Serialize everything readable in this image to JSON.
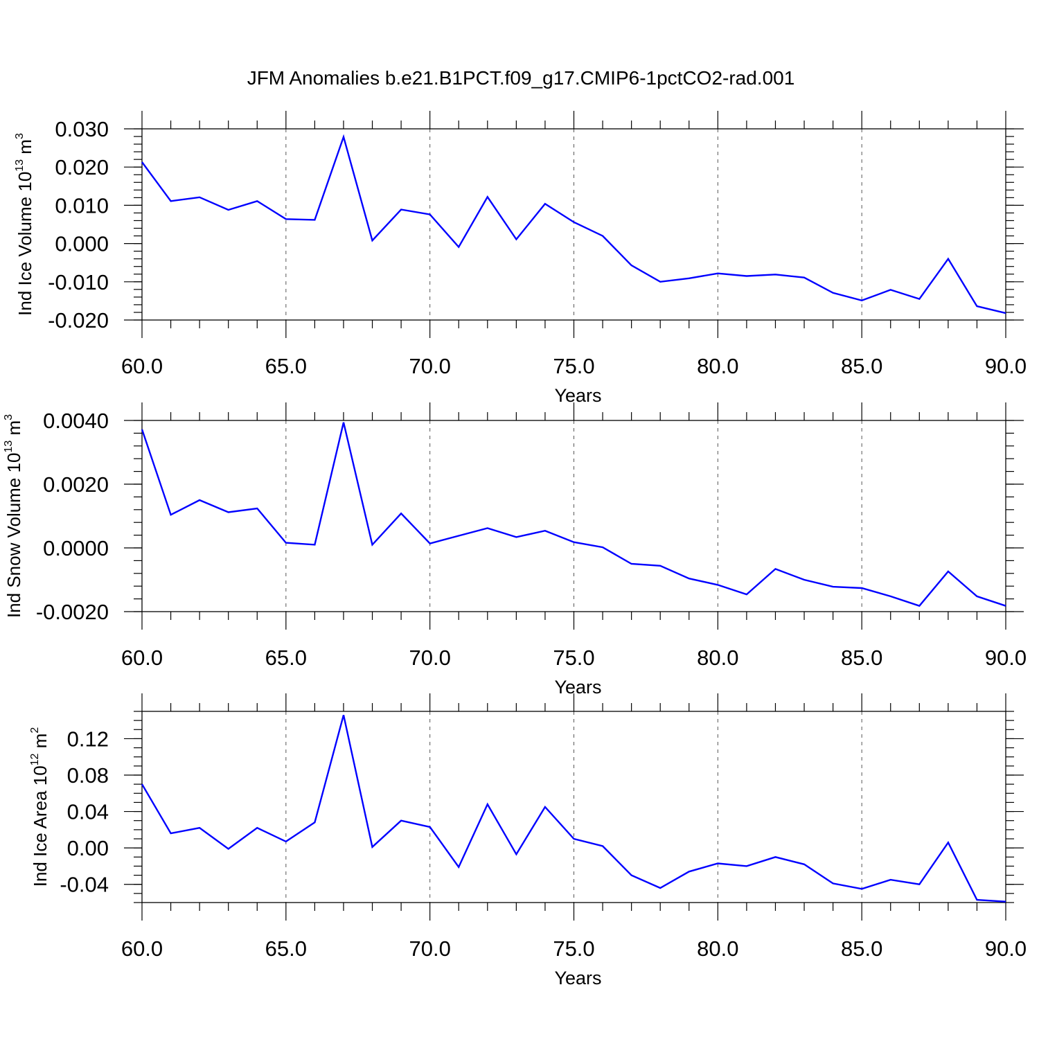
{
  "title": "JFM Anomalies b.e21.B1PCT.f09_g17.CMIP6-1pctCO2-rad.001",
  "colors": {
    "line": "#0000ff",
    "axis": "#000000",
    "grid": "#555555"
  },
  "chart_data": [
    {
      "type": "line",
      "id": "ice-volume",
      "xlabel": "Years",
      "ylabel": {
        "prefix": "Ind Ice Volume 10",
        "exp": "13",
        "unit": " m",
        "unit_exp": "3"
      },
      "xlim": [
        60,
        90
      ],
      "ylim": [
        -0.02,
        0.03
      ],
      "xticks": [
        60,
        65,
        70,
        75,
        80,
        85,
        90
      ],
      "xtick_labels": [
        "60.0",
        "65.0",
        "70.0",
        "75.0",
        "80.0",
        "85.0",
        "90.0"
      ],
      "yticks": [
        -0.02,
        -0.01,
        0.0,
        0.01,
        0.02,
        0.03
      ],
      "ytick_labels": [
        "-0.020",
        "-0.010",
        "0.000",
        "0.010",
        "0.020",
        "0.030"
      ],
      "y_minor_step": 0.002,
      "gridlines_x": [
        65,
        70,
        75,
        80,
        85
      ],
      "x": [
        60,
        61,
        62,
        63,
        64,
        65,
        66,
        67,
        68,
        69,
        70,
        71,
        72,
        73,
        74,
        75,
        76,
        77,
        78,
        79,
        80,
        81,
        82,
        83,
        84,
        85,
        86,
        87,
        88,
        89,
        90
      ],
      "values": [
        0.0213,
        0.0111,
        0.0121,
        0.0088,
        0.0111,
        0.0064,
        0.0062,
        0.0279,
        0.0008,
        0.0089,
        0.0076,
        -0.0009,
        0.0122,
        0.0011,
        0.0104,
        0.0056,
        0.002,
        -0.0057,
        -0.01,
        -0.0091,
        -0.0078,
        -0.0085,
        -0.0081,
        -0.0089,
        -0.0129,
        -0.0149,
        -0.0121,
        -0.0145,
        -0.004,
        -0.0164,
        -0.0182
      ]
    },
    {
      "type": "line",
      "id": "snow-volume",
      "xlabel": "Years",
      "ylabel": {
        "prefix": "Ind Snow Volume 10",
        "exp": "13",
        "unit": " m",
        "unit_exp": "3"
      },
      "xlim": [
        60,
        90
      ],
      "ylim": [
        -0.002,
        0.004
      ],
      "xticks": [
        60,
        65,
        70,
        75,
        80,
        85,
        90
      ],
      "xtick_labels": [
        "60.0",
        "65.0",
        "70.0",
        "75.0",
        "80.0",
        "85.0",
        "90.0"
      ],
      "yticks": [
        -0.002,
        0.0,
        0.002,
        0.004
      ],
      "ytick_labels": [
        "-0.0020",
        "0.0000",
        "0.0020",
        "0.0040"
      ],
      "y_minor_step": 0.0004,
      "gridlines_x": [
        65,
        70,
        75,
        80,
        85
      ],
      "x": [
        60,
        61,
        62,
        63,
        64,
        65,
        66,
        67,
        68,
        69,
        70,
        71,
        72,
        73,
        74,
        75,
        76,
        77,
        78,
        79,
        80,
        81,
        82,
        83,
        84,
        85,
        86,
        87,
        88,
        89,
        90
      ],
      "values": [
        0.00372,
        0.00104,
        0.0015,
        0.00112,
        0.00124,
        0.00016,
        0.0001,
        0.00394,
        0.0001,
        0.00108,
        0.00014,
        0.00038,
        0.00062,
        0.00034,
        0.00054,
        0.00018,
        2e-05,
        -0.0005,
        -0.00056,
        -0.00096,
        -0.00116,
        -0.00146,
        -0.00066,
        -0.001,
        -0.00122,
        -0.00126,
        -0.00152,
        -0.00182,
        -0.00074,
        -0.00152,
        -0.00182
      ]
    },
    {
      "type": "line",
      "id": "ice-area",
      "xlabel": "Years",
      "ylabel": {
        "prefix": "Ind Ice Area 10",
        "exp": "12",
        "unit": " m",
        "unit_exp": "2"
      },
      "xlim": [
        60,
        90
      ],
      "ylim": [
        -0.06,
        0.15
      ],
      "xticks": [
        60,
        65,
        70,
        75,
        80,
        85,
        90
      ],
      "xtick_labels": [
        "60.0",
        "65.0",
        "70.0",
        "75.0",
        "80.0",
        "85.0",
        "90.0"
      ],
      "yticks": [
        -0.04,
        0.0,
        0.04,
        0.08,
        0.12
      ],
      "ytick_labels": [
        "-0.04",
        "0.00",
        "0.04",
        "0.08",
        "0.12"
      ],
      "y_minor_step": 0.01,
      "gridlines_x": [
        65,
        70,
        75,
        80,
        85
      ],
      "x": [
        60,
        61,
        62,
        63,
        64,
        65,
        66,
        67,
        68,
        69,
        70,
        71,
        72,
        73,
        74,
        75,
        76,
        77,
        78,
        79,
        80,
        81,
        82,
        83,
        84,
        85,
        86,
        87,
        88,
        89,
        90
      ],
      "values": [
        0.07,
        0.016,
        0.022,
        -0.001,
        0.022,
        0.007,
        0.028,
        0.146,
        0.001,
        0.03,
        0.023,
        -0.021,
        0.048,
        -0.007,
        0.045,
        0.01,
        0.002,
        -0.03,
        -0.044,
        -0.026,
        -0.017,
        -0.02,
        -0.01,
        -0.018,
        -0.039,
        -0.045,
        -0.035,
        -0.04,
        0.006,
        -0.057,
        -0.059
      ]
    }
  ]
}
